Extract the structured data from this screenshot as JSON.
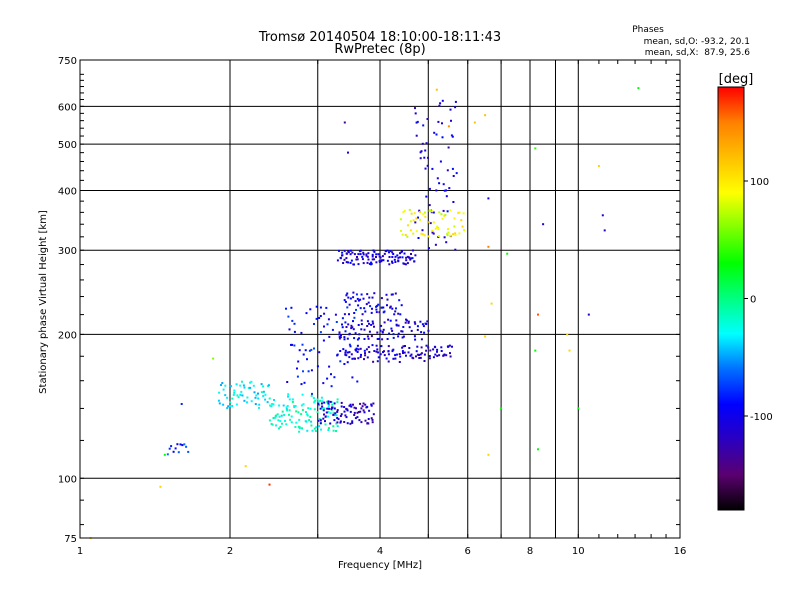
{
  "chart_data": {
    "type": "scatter",
    "title": "Tromsø 20140504 18:10:00-18:11:43",
    "subtitle": "RwPretec (8p)",
    "xlabel": "Frequency [MHz]",
    "ylabel": "Stationary phase Virtual Height [km]",
    "x_scale": "log",
    "y_scale": "log",
    "xlim": [
      1,
      16
    ],
    "ylim": [
      75,
      750
    ],
    "x_ticks": [
      1,
      2,
      4,
      6,
      8,
      10,
      16
    ],
    "y_ticks": [
      75,
      100,
      200,
      300,
      400,
      500,
      600,
      750
    ],
    "x_grid_minor": [
      3,
      5,
      7,
      9
    ],
    "grid": true,
    "stats": {
      "title": "Phases",
      "line_o": "mean, sd,O: -93.2, 20.1",
      "line_x": "mean, sd,X:  87.9, 25.6"
    },
    "colorbar": {
      "label": "[deg]",
      "range": [
        -180,
        180
      ],
      "ticks": [
        {
          "value": 100,
          "label": "100"
        },
        {
          "value": 0,
          "label": "0"
        },
        {
          "value": -100,
          "label": "-100"
        }
      ],
      "colors": [
        "#000000",
        "#5a0070",
        "#2a00c0",
        "#0000ff",
        "#0070ff",
        "#00ffff",
        "#00ff80",
        "#00ff00",
        "#80ff00",
        "#ffff00",
        "#ffc000",
        "#ff8000",
        "#ff0000"
      ]
    },
    "traces": [
      {
        "name": "trace-o-low",
        "fmin": 2.4,
        "fmax": 3.3,
        "hmin": 125,
        "hmax": 150,
        "phase": -20,
        "n": 120
      },
      {
        "name": "trace-o-low-2",
        "fmin": 1.9,
        "fmax": 2.4,
        "hmin": 140,
        "hmax": 160,
        "phase": -30,
        "n": 60
      },
      {
        "name": "trace-o-mid",
        "fmin": 3.0,
        "fmax": 3.9,
        "hmin": 130,
        "hmax": 145,
        "phase": -115,
        "n": 90
      },
      {
        "name": "trace-o-180",
        "fmin": 3.4,
        "fmax": 5.6,
        "hmin": 175,
        "hmax": 190,
        "phase": -110,
        "n": 110
      },
      {
        "name": "trace-o-200",
        "fmin": 3.3,
        "fmax": 5.0,
        "hmin": 195,
        "hmax": 215,
        "phase": -105,
        "n": 90
      },
      {
        "name": "trace-o-230",
        "fmin": 3.4,
        "fmax": 4.4,
        "hmin": 220,
        "hmax": 245,
        "phase": -100,
        "n": 60
      },
      {
        "name": "trace-o-285",
        "fmin": 3.3,
        "fmax": 4.7,
        "hmin": 280,
        "hmax": 300,
        "phase": -105,
        "n": 110
      },
      {
        "name": "trace-o-rise",
        "fmin": 4.7,
        "fmax": 5.7,
        "hmin": 300,
        "hmax": 620,
        "phase": -105,
        "n": 70
      },
      {
        "name": "trace-x-upper",
        "fmin": 4.4,
        "fmax": 5.9,
        "hmin": 320,
        "hmax": 365,
        "phase": 90,
        "n": 60
      },
      {
        "name": "trace-low-105",
        "fmin": 1.5,
        "fmax": 1.65,
        "hmin": 112,
        "hmax": 118,
        "phase": -80,
        "n": 12
      },
      {
        "name": "trace-scatter-mid",
        "fmin": 2.6,
        "fmax": 3.6,
        "hmin": 150,
        "hmax": 230,
        "phase": -90,
        "n": 80
      }
    ],
    "isolated_points": [
      {
        "x": 1.05,
        "y": 75,
        "phase": 110
      },
      {
        "x": 1.45,
        "y": 96,
        "phase": 110
      },
      {
        "x": 1.48,
        "y": 112,
        "phase": 30
      },
      {
        "x": 1.6,
        "y": 143,
        "phase": -80
      },
      {
        "x": 1.85,
        "y": 178,
        "phase": 60
      },
      {
        "x": 2.15,
        "y": 106,
        "phase": 110
      },
      {
        "x": 2.4,
        "y": 97,
        "phase": 170
      },
      {
        "x": 3.4,
        "y": 555,
        "phase": -140
      },
      {
        "x": 3.45,
        "y": 480,
        "phase": -110
      },
      {
        "x": 5.2,
        "y": 650,
        "phase": 120
      },
      {
        "x": 5.5,
        "y": 545,
        "phase": 140
      },
      {
        "x": 6.2,
        "y": 555,
        "phase": 120
      },
      {
        "x": 6.5,
        "y": 575,
        "phase": 120
      },
      {
        "x": 6.6,
        "y": 385,
        "phase": -100
      },
      {
        "x": 6.6,
        "y": 305,
        "phase": 150
      },
      {
        "x": 6.7,
        "y": 232,
        "phase": 110
      },
      {
        "x": 6.5,
        "y": 198,
        "phase": 110
      },
      {
        "x": 6.6,
        "y": 112,
        "phase": 110
      },
      {
        "x": 7.2,
        "y": 295,
        "phase": 30
      },
      {
        "x": 7.0,
        "y": 140,
        "phase": 30
      },
      {
        "x": 8.2,
        "y": 490,
        "phase": 40
      },
      {
        "x": 8.3,
        "y": 220,
        "phase": 160
      },
      {
        "x": 8.2,
        "y": 185,
        "phase": 30
      },
      {
        "x": 8.3,
        "y": 115,
        "phase": 30
      },
      {
        "x": 8.5,
        "y": 340,
        "phase": -110
      },
      {
        "x": 9.5,
        "y": 200,
        "phase": 110
      },
      {
        "x": 9.6,
        "y": 185,
        "phase": 110
      },
      {
        "x": 10.0,
        "y": 140,
        "phase": 30
      },
      {
        "x": 10.5,
        "y": 220,
        "phase": -110
      },
      {
        "x": 11.0,
        "y": 450,
        "phase": 110
      },
      {
        "x": 11.2,
        "y": 355,
        "phase": -110
      },
      {
        "x": 11.3,
        "y": 330,
        "phase": -110
      },
      {
        "x": 13.2,
        "y": 655,
        "phase": 30
      }
    ]
  }
}
